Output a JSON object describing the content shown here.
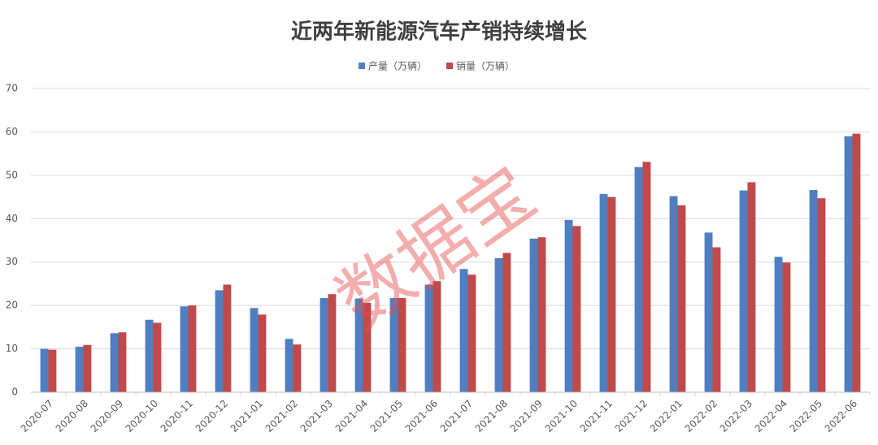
{
  "chart_data": {
    "type": "bar",
    "title": "近两年新能源汽车产销持续增长",
    "watermark": "数据宝",
    "categories": [
      "2020-07",
      "2020-08",
      "2020-09",
      "2020-10",
      "2020-11",
      "2020-12",
      "2021-01",
      "2021-02",
      "2021-03",
      "2021-04",
      "2021-05",
      "2021-06",
      "2021-07",
      "2021-08",
      "2021-09",
      "2021-10",
      "2021-11",
      "2021-12",
      "2022-01",
      "2022-02",
      "2022-03",
      "2022-04",
      "2022-05",
      "2022-06"
    ],
    "series": [
      {
        "name": "产量（万辆）",
        "color": "#4f7fc1",
        "values": [
          10.0,
          10.5,
          13.6,
          16.7,
          19.8,
          23.5,
          19.4,
          12.3,
          21.7,
          21.6,
          21.7,
          24.8,
          28.4,
          30.9,
          35.4,
          39.7,
          45.7,
          51.9,
          45.2,
          36.8,
          46.5,
          31.2,
          46.6,
          59.0
        ]
      },
      {
        "name": "销量（万辆）",
        "color": "#c0494a",
        "values": [
          9.8,
          10.9,
          13.8,
          16.0,
          20.0,
          24.8,
          17.9,
          11.0,
          22.6,
          20.6,
          21.7,
          25.6,
          27.1,
          32.1,
          35.7,
          38.3,
          45.0,
          53.1,
          43.1,
          33.4,
          48.4,
          29.9,
          44.7,
          59.6
        ]
      }
    ],
    "ylim": [
      0,
      70
    ],
    "yticks": [
      0,
      10,
      20,
      30,
      40,
      50,
      60,
      70
    ],
    "grid": true,
    "legend": "top"
  }
}
